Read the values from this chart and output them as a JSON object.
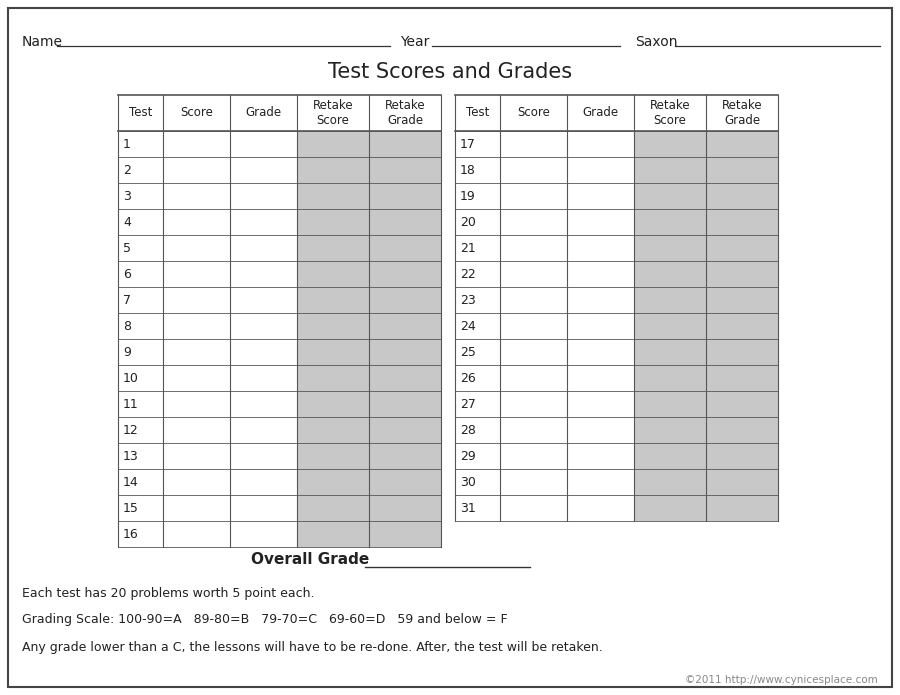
{
  "title": "Test Scores and Grades",
  "name_label": "Name",
  "year_label": "Year",
  "saxon_label": "Saxon",
  "col_headers": [
    "Test",
    "Score",
    "Grade",
    "Retake\nScore",
    "Retake\nGrade"
  ],
  "left_tests": [
    "1",
    "2",
    "3",
    "4",
    "5",
    "6",
    "7",
    "8",
    "9",
    "10",
    "11",
    "12",
    "13",
    "14",
    "15",
    "16"
  ],
  "right_tests": [
    "17",
    "18",
    "19",
    "20",
    "21",
    "22",
    "23",
    "24",
    "25",
    "26",
    "27",
    "28",
    "29",
    "30",
    "31"
  ],
  "overall_grade_label": "Overall Grade",
  "footer_lines": [
    "Each test has 20 problems worth 5 point each.",
    "Grading Scale: 100-90=A   89-80=B   79-70=C   69-60=D   59 and below = F",
    "Any grade lower than a C, the lessons will have to be re-done. After, the test will be retaken."
  ],
  "copyright": "©2011 http://www.cynicesplace.com",
  "bg_color": "#ffffff",
  "text_color": "#222222",
  "gray_color": "#c8c8c8",
  "border_color": "#555555"
}
